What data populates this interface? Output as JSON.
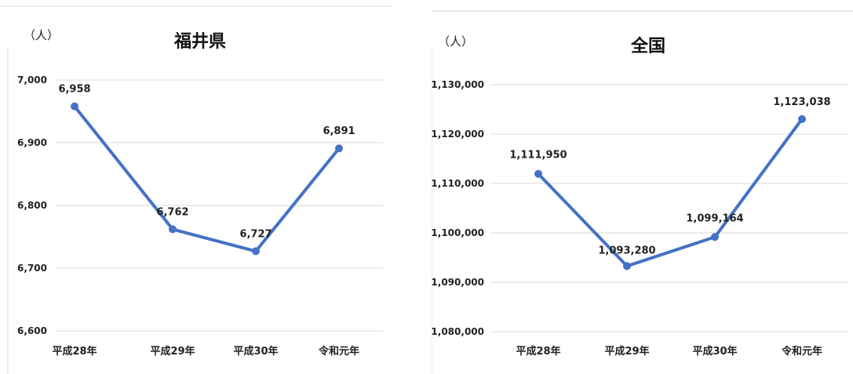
{
  "charts": [
    {
      "unit_label": "（人）",
      "chart_data": {
        "type": "line",
        "title": "福井県",
        "categories": [
          "平成28年",
          "平成29年",
          "平成30年",
          "令和元年"
        ],
        "values": [
          6958,
          6762,
          6727,
          6891
        ],
        "data_labels": [
          "6,958",
          "6,762",
          "6,727",
          "6,891"
        ],
        "ylim": [
          6600,
          7000
        ],
        "yticks": [
          "7,000",
          "6,900",
          "6,800",
          "6,700",
          "6,600"
        ],
        "ytick_values": [
          7000,
          6900,
          6800,
          6700,
          6600
        ],
        "grid": true,
        "color": "#4472c4"
      }
    },
    {
      "unit_label": "（人）",
      "chart_data": {
        "type": "line",
        "title": "全国",
        "categories": [
          "平成28年",
          "平成29年",
          "平成30年",
          "令和元年"
        ],
        "values": [
          1111950,
          1093280,
          1099164,
          1123038
        ],
        "data_labels": [
          "1,111,950",
          "1,093,280",
          "1,099,164",
          "1,123,038"
        ],
        "ylim": [
          1080000,
          1130000
        ],
        "yticks": [
          "1,130,000",
          "1,120,000",
          "1,110,000",
          "1,100,000",
          "1,090,000",
          "1,080,000"
        ],
        "ytick_values": [
          1130000,
          1120000,
          1110000,
          1100000,
          1090000,
          1080000
        ],
        "grid": true,
        "color": "#4472c4"
      }
    }
  ]
}
